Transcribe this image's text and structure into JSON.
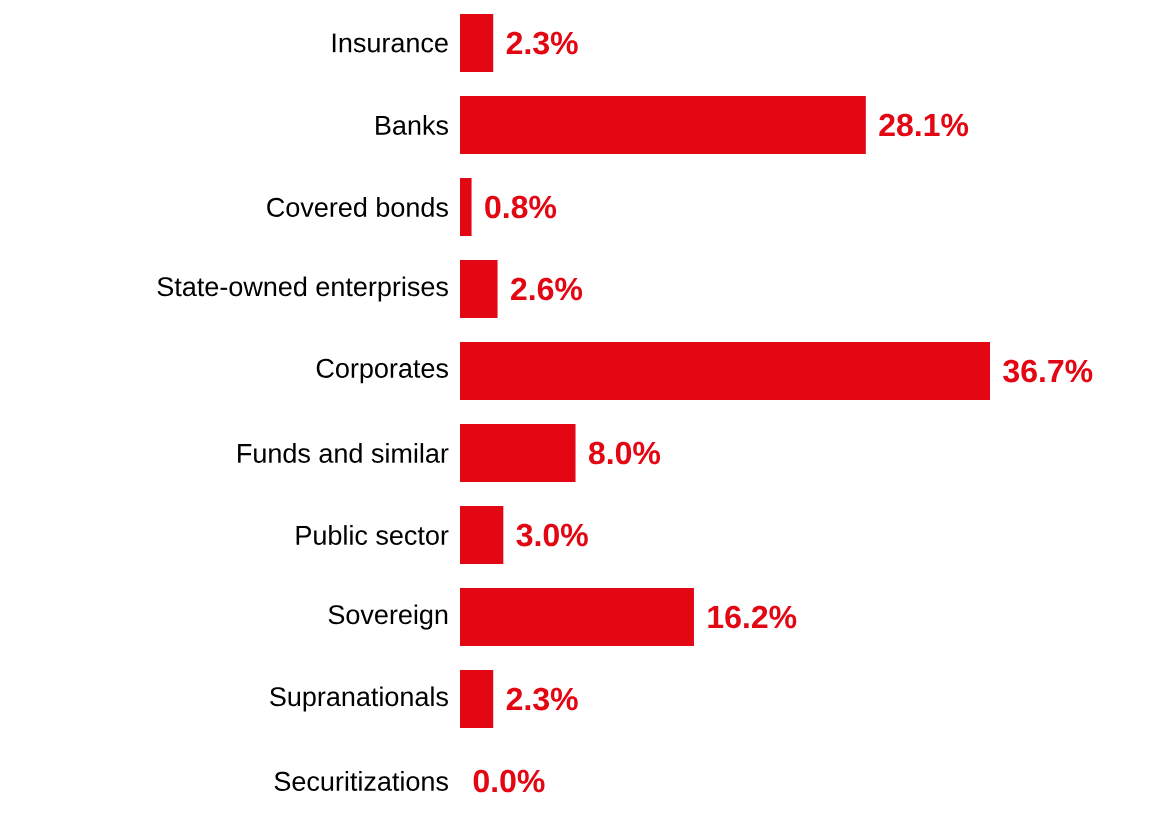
{
  "chart_data": {
    "type": "bar",
    "orientation": "horizontal",
    "color": "#e30613",
    "categories": [
      "Insurance",
      "Banks",
      "Covered bonds",
      "State-owned enterprises",
      "Corporates",
      "Funds and similar",
      "Public sector",
      "Sovereign",
      "Supranationals",
      "Securitizations"
    ],
    "values": [
      2.3,
      28.1,
      0.8,
      2.6,
      36.7,
      8.0,
      3.0,
      16.2,
      2.3,
      0.0
    ],
    "value_labels": [
      "2.3%",
      "28.1%",
      "0.8%",
      "2.6%",
      "36.7%",
      "8.0%",
      "3.0%",
      "16.2%",
      "2.3%",
      "0.0%"
    ]
  }
}
